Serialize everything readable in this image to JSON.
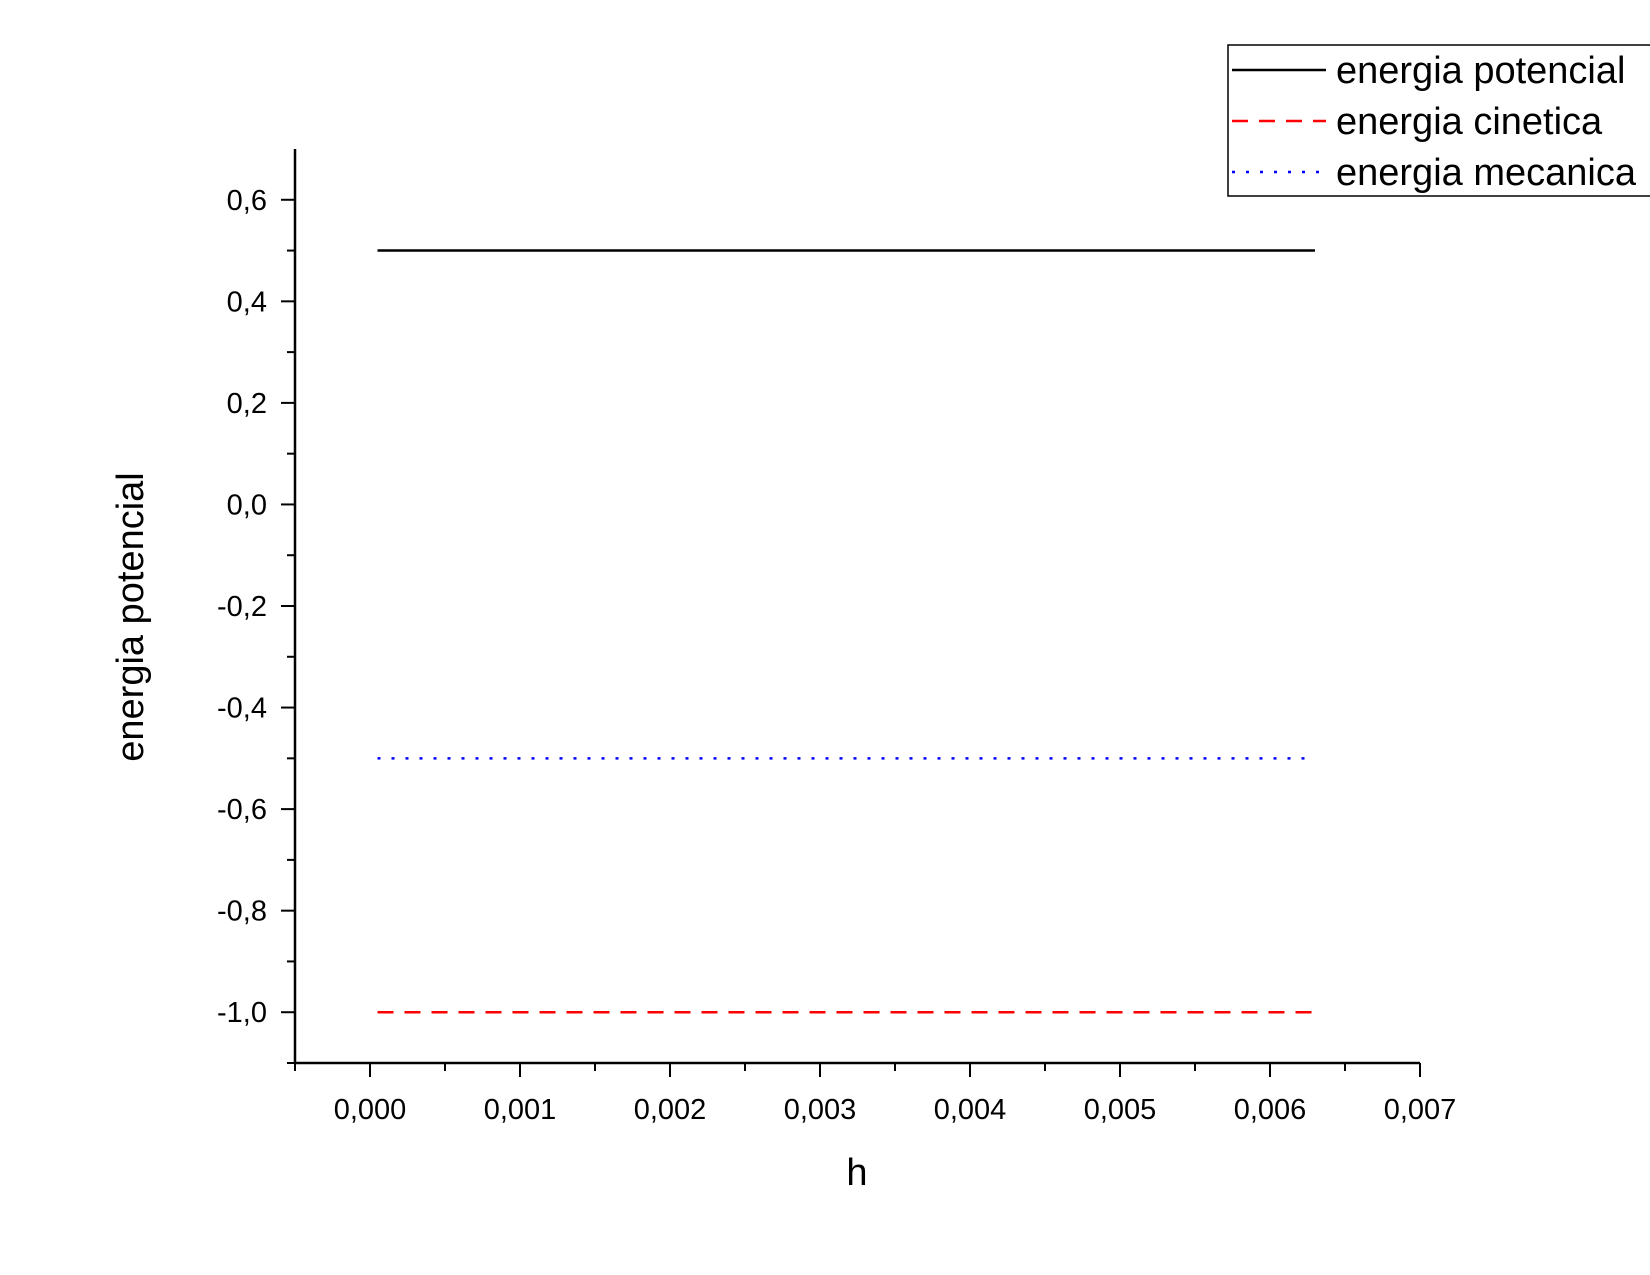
{
  "chart_data": {
    "type": "line",
    "title": "",
    "xlabel": "h",
    "ylabel": "energia potencial",
    "xlim": [
      -0.0005,
      0.007
    ],
    "ylim": [
      -1.1,
      0.7
    ],
    "x_ticks": [
      0.0,
      0.001,
      0.002,
      0.003,
      0.004,
      0.005,
      0.006,
      0.007
    ],
    "x_tick_labels": [
      "0,000",
      "0,001",
      "0,002",
      "0,003",
      "0,004",
      "0,005",
      "0,006",
      "0,007"
    ],
    "y_ticks": [
      0.6,
      0.4,
      0.2,
      0.0,
      -0.2,
      -0.4,
      -0.6,
      -0.8,
      -1.0
    ],
    "y_tick_labels": [
      "0,6",
      "0,4",
      "0,2",
      "0,0",
      "-0,2",
      "-0,4",
      "-0,6",
      "-0,8",
      "-1,0"
    ],
    "grid": false,
    "legend_position": "top-right",
    "series": [
      {
        "name": "energia potencial",
        "color": "#000000",
        "style": "solid",
        "x": [
          5e-05,
          0.0063
        ],
        "y": [
          0.5,
          0.5
        ]
      },
      {
        "name": "energia cinetica",
        "color": "#ff0000",
        "style": "dashed",
        "x": [
          5e-05,
          0.0063
        ],
        "y": [
          -1.0,
          -1.0
        ]
      },
      {
        "name": "energia mecanica",
        "color": "#0000ff",
        "style": "dotted",
        "x": [
          5e-05,
          0.0063
        ],
        "y": [
          -0.5,
          -0.5
        ]
      }
    ]
  }
}
